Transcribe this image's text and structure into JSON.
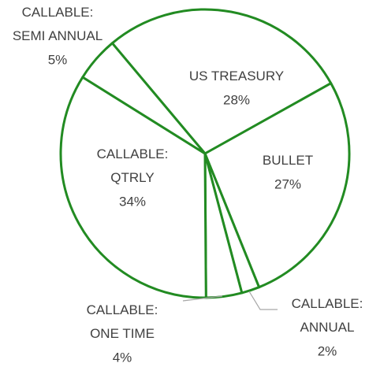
{
  "chart_data": {
    "type": "pie",
    "categories": [
      "US TREASURY",
      "BULLET",
      "CALLABLE: ANNUAL",
      "CALLABLE: ONE TIME",
      "CALLABLE: QTRLY",
      "CALLABLE: SEMI ANNUAL"
    ],
    "values": [
      28,
      27,
      2,
      4,
      34,
      5
    ],
    "value_labels": [
      "28%",
      "27%",
      "2%",
      "4%",
      "34%",
      "5%"
    ],
    "color": "#ffffff",
    "edge_color": "#228b22"
  }
}
